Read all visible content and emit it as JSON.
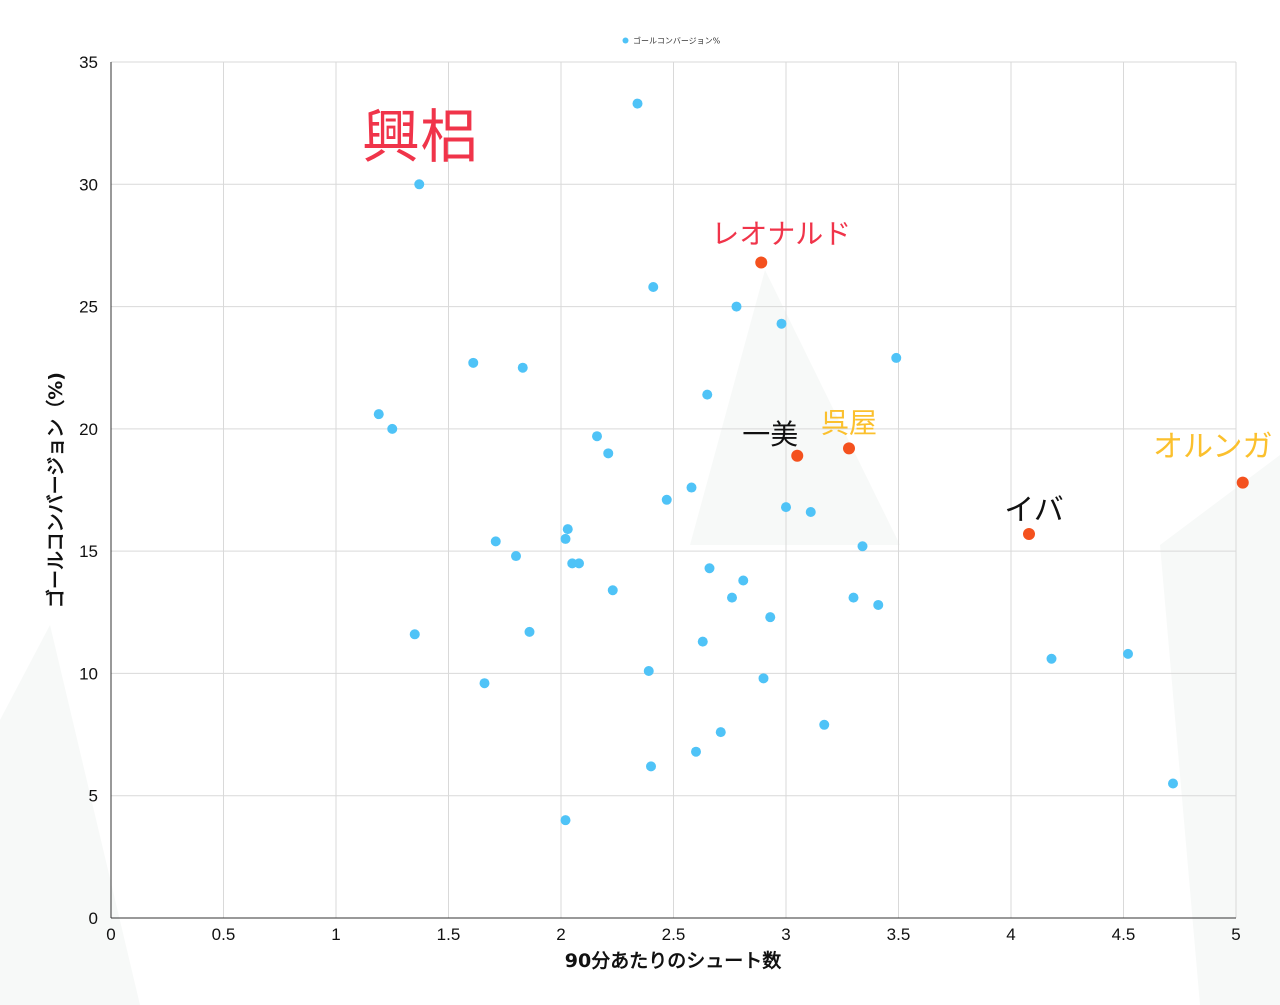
{
  "chart_data": {
    "type": "scatter",
    "title": "",
    "xlabel": "90分あたりのシュート数",
    "ylabel": "ゴールコンバージョン（%)",
    "xlim": [
      0,
      5
    ],
    "ylim": [
      0,
      35
    ],
    "xticks": [
      "0",
      "0.5",
      "1",
      "1.5",
      "2",
      "2.5",
      "3",
      "3.5",
      "4",
      "4.5",
      "5"
    ],
    "yticks": [
      "0",
      "5",
      "10",
      "15",
      "20",
      "25",
      "30",
      "35"
    ],
    "grid": true,
    "legend": {
      "position": "top-center",
      "entries": [
        "ゴールコンバージョン%"
      ]
    },
    "series": [
      {
        "name": "ゴールコンバージョン%",
        "color": "#4fc3f7",
        "points": [
          {
            "x": 1.37,
            "y": 30.0
          },
          {
            "x": 2.34,
            "y": 33.3
          },
          {
            "x": 2.41,
            "y": 25.8
          },
          {
            "x": 2.78,
            "y": 25.0
          },
          {
            "x": 2.98,
            "y": 24.3
          },
          {
            "x": 3.49,
            "y": 22.9
          },
          {
            "x": 1.61,
            "y": 22.7
          },
          {
            "x": 1.83,
            "y": 22.5
          },
          {
            "x": 2.65,
            "y": 21.4
          },
          {
            "x": 1.19,
            "y": 20.6
          },
          {
            "x": 1.25,
            "y": 20.0
          },
          {
            "x": 2.16,
            "y": 19.7
          },
          {
            "x": 2.21,
            "y": 19.0
          },
          {
            "x": 2.58,
            "y": 17.6
          },
          {
            "x": 2.47,
            "y": 17.1
          },
          {
            "x": 3.0,
            "y": 16.8
          },
          {
            "x": 3.11,
            "y": 16.6
          },
          {
            "x": 2.03,
            "y": 15.9
          },
          {
            "x": 2.02,
            "y": 15.5
          },
          {
            "x": 1.71,
            "y": 15.4
          },
          {
            "x": 3.34,
            "y": 15.2
          },
          {
            "x": 1.8,
            "y": 14.8
          },
          {
            "x": 2.05,
            "y": 14.5
          },
          {
            "x": 2.08,
            "y": 14.5
          },
          {
            "x": 2.66,
            "y": 14.3
          },
          {
            "x": 2.81,
            "y": 13.8
          },
          {
            "x": 2.23,
            "y": 13.4
          },
          {
            "x": 2.76,
            "y": 13.1
          },
          {
            "x": 3.3,
            "y": 13.1
          },
          {
            "x": 3.41,
            "y": 12.8
          },
          {
            "x": 2.93,
            "y": 12.3
          },
          {
            "x": 1.86,
            "y": 11.7
          },
          {
            "x": 1.35,
            "y": 11.6
          },
          {
            "x": 2.63,
            "y": 11.3
          },
          {
            "x": 4.18,
            "y": 10.6
          },
          {
            "x": 4.52,
            "y": 10.8
          },
          {
            "x": 2.39,
            "y": 10.1
          },
          {
            "x": 2.9,
            "y": 9.8
          },
          {
            "x": 1.66,
            "y": 9.6
          },
          {
            "x": 3.17,
            "y": 7.9
          },
          {
            "x": 2.71,
            "y": 7.6
          },
          {
            "x": 2.6,
            "y": 6.8
          },
          {
            "x": 2.4,
            "y": 6.2
          },
          {
            "x": 4.72,
            "y": 5.5
          },
          {
            "x": 2.02,
            "y": 4.0
          }
        ]
      },
      {
        "name": "",
        "color": "#f4511e",
        "points": [
          {
            "x": 2.89,
            "y": 26.8,
            "label": "レオナルド",
            "label_color": "#f0344a"
          },
          {
            "x": 3.05,
            "y": 18.9,
            "label": "一美",
            "label_color": "#111111"
          },
          {
            "x": 3.28,
            "y": 19.2,
            "label": "呉屋",
            "label_color": "#fbc02d"
          },
          {
            "x": 5.03,
            "y": 17.8,
            "label": "オルンガ",
            "label_color": "#fbc02d"
          },
          {
            "x": 4.08,
            "y": 15.7,
            "label": "イバ",
            "label_color": "#111111"
          }
        ]
      }
    ],
    "annotations": [
      {
        "text": "興梠",
        "color": "#f0344a"
      }
    ]
  }
}
